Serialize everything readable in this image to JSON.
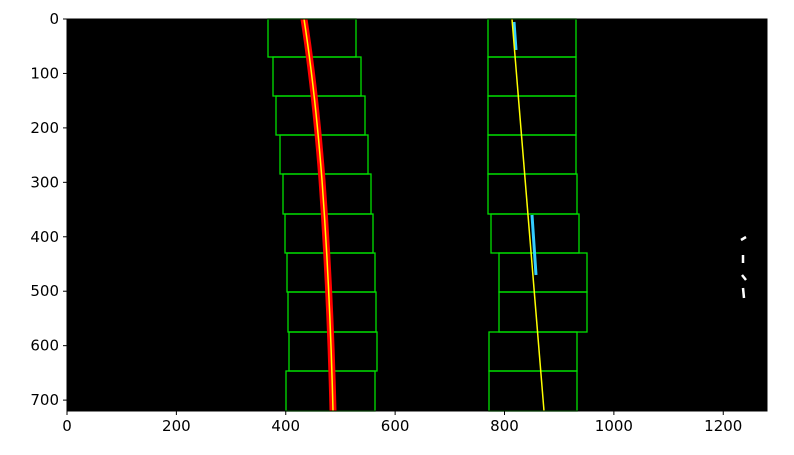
{
  "chart_data": {
    "type": "image",
    "xlim": [
      0,
      1280
    ],
    "ylim": [
      720,
      0
    ],
    "xticks": [
      0,
      200,
      400,
      600,
      800,
      1000,
      1200
    ],
    "yticks": [
      0,
      100,
      200,
      300,
      400,
      500,
      600,
      700
    ]
  }
}
